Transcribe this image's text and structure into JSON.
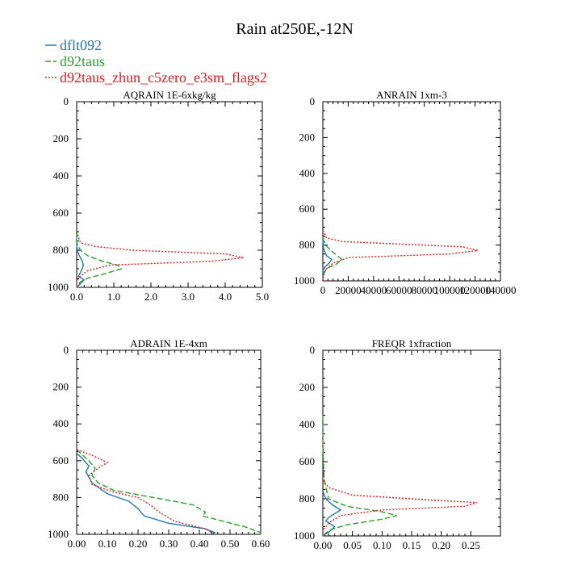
{
  "figure": {
    "title": "Rain at250E,-12N",
    "legend": [
      {
        "name": "dflt092",
        "color": "#1f77b4",
        "dash": "solid"
      },
      {
        "name": "d92taus",
        "color": "#2ca02c",
        "dash": "dashed"
      },
      {
        "name": "d92taus_zhun_c5zero_e3sm_flags2",
        "color": "#e31a1c",
        "dash": "dotted"
      }
    ]
  },
  "chart_data": [
    {
      "type": "line",
      "title": "AQRAIN  1E-6xkg/kg",
      "xlim": [
        0,
        5
      ],
      "ylim": [
        1000,
        0
      ],
      "xticks": [
        0,
        1,
        2,
        3,
        4,
        5
      ],
      "xtick_labels": [
        "0.0",
        "1.0",
        "2.0",
        "3.0",
        "4.0",
        "5.0"
      ],
      "yticks": [
        0,
        200,
        400,
        600,
        800,
        1000
      ],
      "ytick_labels": [
        "0",
        "200",
        "400",
        "600",
        "800",
        "1000"
      ],
      "series": [
        {
          "name": "dflt092",
          "points": [
            [
              0,
              700
            ],
            [
              0,
              780
            ],
            [
              0.05,
              820
            ],
            [
              0.15,
              860
            ],
            [
              0.18,
              880
            ],
            [
              0.15,
              900
            ],
            [
              0.1,
              920
            ],
            [
              0.05,
              940
            ],
            [
              0.2,
              960
            ],
            [
              0.1,
              980
            ],
            [
              0,
              1000
            ]
          ]
        },
        {
          "name": "d92taus",
          "points": [
            [
              0,
              700
            ],
            [
              0,
              760
            ],
            [
              0.1,
              800
            ],
            [
              0.3,
              830
            ],
            [
              0.7,
              860
            ],
            [
              1.1,
              880
            ],
            [
              1.2,
              900
            ],
            [
              0.7,
              930
            ],
            [
              0.3,
              950
            ],
            [
              0.1,
              970
            ],
            [
              0,
              1000
            ]
          ]
        },
        {
          "name": "d92taus_zhun_c5zero_e3sm_flags2",
          "points": [
            [
              0,
              700
            ],
            [
              0.1,
              760
            ],
            [
              0.5,
              780
            ],
            [
              1.5,
              800
            ],
            [
              4.0,
              820
            ],
            [
              4.5,
              840
            ],
            [
              3.6,
              860
            ],
            [
              0.9,
              880
            ],
            [
              0.3,
              910
            ],
            [
              0.1,
              940
            ],
            [
              0,
              970
            ],
            [
              0,
              1000
            ]
          ]
        }
      ]
    },
    {
      "type": "line",
      "title": "ANRAIN  1xm-3",
      "xlim": [
        0,
        140000
      ],
      "ylim": [
        1000,
        0
      ],
      "xticks": [
        0,
        20000,
        40000,
        60000,
        80000,
        100000,
        120000,
        140000
      ],
      "xtick_labels": [
        "0",
        "20000",
        "40000",
        "60000",
        "80000",
        "100000",
        "120000",
        "140000"
      ],
      "yticks": [
        0,
        200,
        400,
        600,
        800,
        1000
      ],
      "ytick_labels": [
        "0",
        "200",
        "400",
        "600",
        "800",
        "1000"
      ],
      "series": [
        {
          "name": "dflt092",
          "points": [
            [
              0,
              760
            ],
            [
              500,
              820
            ],
            [
              3000,
              860
            ],
            [
              7000,
              880
            ],
            [
              5000,
              900
            ],
            [
              2000,
              920
            ],
            [
              0,
              940
            ],
            [
              500,
              960
            ],
            [
              0,
              1000
            ]
          ]
        },
        {
          "name": "d92taus",
          "points": [
            [
              0,
              760
            ],
            [
              2000,
              800
            ],
            [
              8000,
              840
            ],
            [
              15000,
              880
            ],
            [
              10000,
              910
            ],
            [
              3000,
              930
            ],
            [
              500,
              960
            ],
            [
              0,
              1000
            ]
          ]
        },
        {
          "name": "d92taus_zhun_c5zero_e3sm_flags2",
          "points": [
            [
              0,
              720
            ],
            [
              3000,
              760
            ],
            [
              15000,
              780
            ],
            [
              110000,
              810
            ],
            [
              122000,
              830
            ],
            [
              100000,
              850
            ],
            [
              20000,
              870
            ],
            [
              8000,
              900
            ],
            [
              2000,
              940
            ],
            [
              0,
              980
            ],
            [
              0,
              1000
            ]
          ]
        }
      ]
    },
    {
      "type": "line",
      "title": "ADRAIN  1E-4xm",
      "xlim": [
        0,
        0.6
      ],
      "ylim": [
        1000,
        0
      ],
      "xticks": [
        0,
        0.1,
        0.2,
        0.3,
        0.4,
        0.5,
        0.6
      ],
      "xtick_labels": [
        "0.00",
        "0.10",
        "0.20",
        "0.30",
        "0.40",
        "0.50",
        "0.60"
      ],
      "yticks": [
        0,
        200,
        400,
        600,
        800,
        1000
      ],
      "ytick_labels": [
        "0",
        "200",
        "400",
        "600",
        "800",
        "1000"
      ],
      "series": [
        {
          "name": "dflt092",
          "points": [
            [
              0,
              560
            ],
            [
              0.02,
              590
            ],
            [
              0.04,
              630
            ],
            [
              0.03,
              660
            ],
            [
              0.05,
              720
            ],
            [
              0.1,
              780
            ],
            [
              0.17,
              820
            ],
            [
              0.2,
              860
            ],
            [
              0.22,
              900
            ],
            [
              0.3,
              940
            ],
            [
              0.42,
              970
            ],
            [
              0.45,
              990
            ],
            [
              0.44,
              1000
            ]
          ]
        },
        {
          "name": "d92taus",
          "points": [
            [
              0,
              540
            ],
            [
              0.02,
              570
            ],
            [
              0.04,
              600
            ],
            [
              0.06,
              640
            ],
            [
              0.05,
              680
            ],
            [
              0.07,
              720
            ],
            [
              0.12,
              760
            ],
            [
              0.25,
              800
            ],
            [
              0.38,
              840
            ],
            [
              0.42,
              880
            ],
            [
              0.41,
              900
            ],
            [
              0.48,
              930
            ],
            [
              0.55,
              960
            ],
            [
              0.6,
              990
            ],
            [
              0.6,
              1000
            ]
          ]
        },
        {
          "name": "d92taus_zhun_c5zero_e3sm_flags2",
          "points": [
            [
              0,
              540
            ],
            [
              0.05,
              570
            ],
            [
              0.1,
              610
            ],
            [
              0.07,
              640
            ],
            [
              0.04,
              680
            ],
            [
              0.05,
              730
            ],
            [
              0.12,
              770
            ],
            [
              0.2,
              800
            ],
            [
              0.24,
              840
            ],
            [
              0.27,
              880
            ],
            [
              0.32,
              930
            ],
            [
              0.42,
              970
            ],
            [
              0.45,
              1000
            ]
          ]
        }
      ]
    },
    {
      "type": "line",
      "title": "FREQR  1xfraction",
      "xlim": [
        0,
        0.3
      ],
      "ylim": [
        1000,
        0
      ],
      "xticks": [
        0,
        0.05,
        0.1,
        0.15,
        0.2,
        0.25
      ],
      "xtick_labels": [
        "0.00",
        "0.05",
        "0.10",
        "0.15",
        "0.20",
        "0.25"
      ],
      "yticks": [
        0,
        200,
        400,
        600,
        800,
        1000
      ],
      "ytick_labels": [
        "0",
        "200",
        "400",
        "600",
        "800",
        "1000"
      ],
      "series": [
        {
          "name": "dflt092",
          "points": [
            [
              0,
              760
            ],
            [
              0.005,
              800
            ],
            [
              0.015,
              830
            ],
            [
              0.03,
              860
            ],
            [
              0.02,
              880
            ],
            [
              0.01,
              900
            ],
            [
              0.005,
              920
            ],
            [
              0.02,
              950
            ],
            [
              0.01,
              980
            ],
            [
              0,
              1000
            ]
          ]
        },
        {
          "name": "d92taus",
          "points": [
            [
              0,
              350
            ],
            [
              0,
              500
            ],
            [
              0.002,
              700
            ],
            [
              0.01,
              800
            ],
            [
              0.04,
              840
            ],
            [
              0.1,
              870
            ],
            [
              0.125,
              890
            ],
            [
              0.1,
              910
            ],
            [
              0.04,
              940
            ],
            [
              0.01,
              970
            ],
            [
              0,
              1000
            ]
          ]
        },
        {
          "name": "d92taus_zhun_c5zero_e3sm_flags2",
          "points": [
            [
              0,
              700
            ],
            [
              0.01,
              740
            ],
            [
              0.05,
              780
            ],
            [
              0.2,
              810
            ],
            [
              0.26,
              820
            ],
            [
              0.24,
              840
            ],
            [
              0.1,
              860
            ],
            [
              0.03,
              890
            ],
            [
              0.01,
              930
            ],
            [
              0,
              970
            ],
            [
              0,
              1000
            ]
          ]
        }
      ]
    }
  ]
}
